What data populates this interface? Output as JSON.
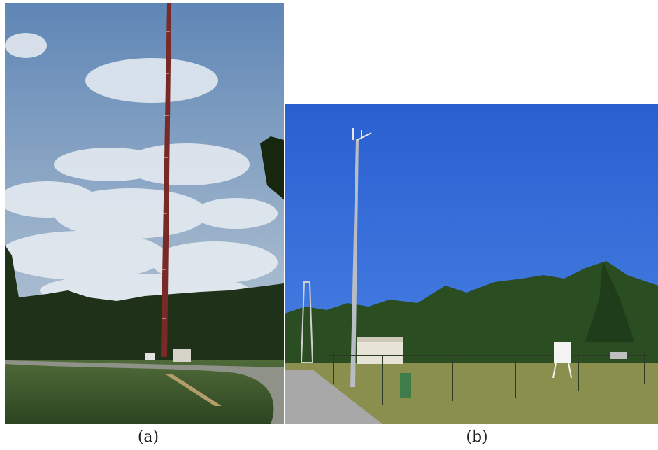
{
  "figure": {
    "panels": [
      {
        "caption": "(a)",
        "scene": "tall-lattice-tower-cloudy-sky"
      },
      {
        "caption": "(b)",
        "scene": "weather-station-mast-clear-sky"
      }
    ]
  },
  "colors": {
    "sky_a_top": "#5f86b6",
    "sky_a_bottom": "#b7c6d6",
    "sky_b": "#2f66cf",
    "forest": "#1f3219",
    "grass": "#3f5a2c",
    "tower_red": "#8e2f2a"
  }
}
